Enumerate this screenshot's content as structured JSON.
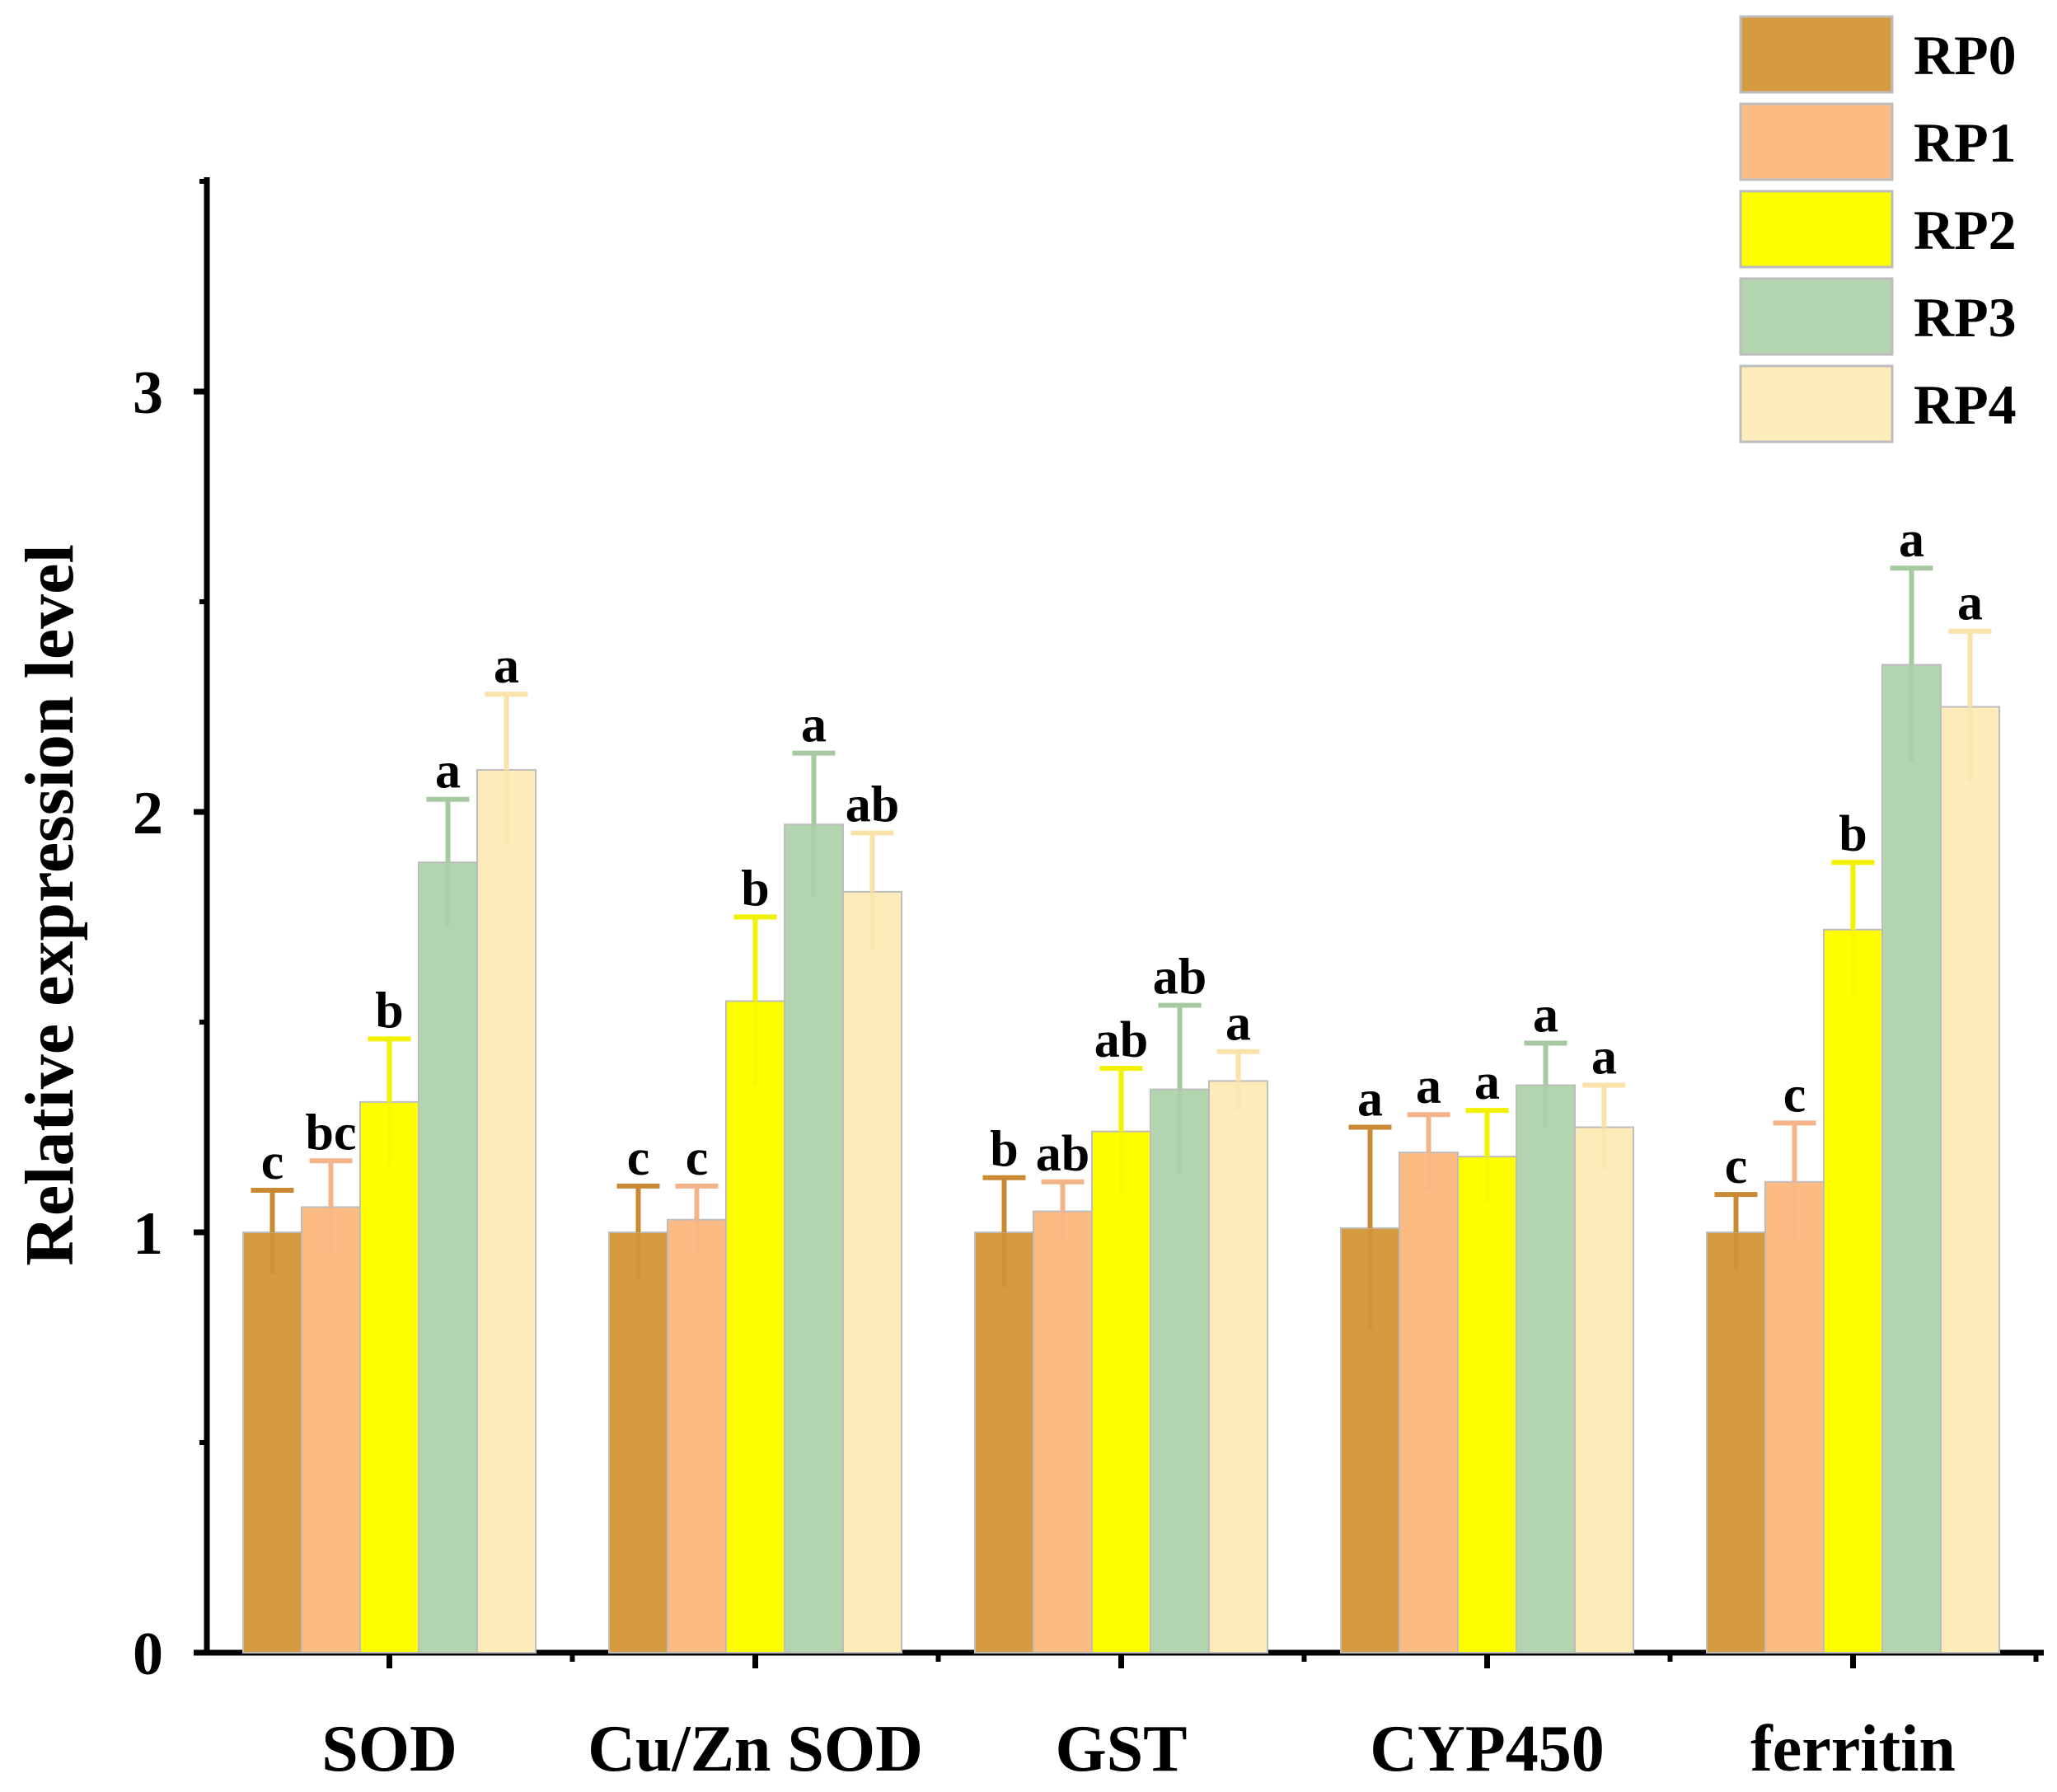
{
  "chart_data": {
    "type": "bar",
    "title": "",
    "xlabel": "",
    "ylabel": "Relative expression level",
    "ylim": [
      0,
      3.5
    ],
    "yticks": [
      0,
      1,
      2,
      3
    ],
    "ytick_labels": [
      "0",
      "1",
      "2",
      "3"
    ],
    "grid": false,
    "legend_position": "top-right",
    "categories": [
      "SOD",
      "Cu/Zn SOD",
      "GST",
      "CYP450",
      "ferritin"
    ],
    "series": [
      {
        "name": "RP0",
        "color": "#D69B40",
        "error_color": "#C98A33",
        "values": [
          1.0,
          1.0,
          1.0,
          1.01,
          1.0
        ],
        "errors": [
          0.1,
          0.11,
          0.13,
          0.24,
          0.09
        ],
        "significance": [
          "c",
          "c",
          "b",
          "a",
          "c"
        ]
      },
      {
        "name": "RP1",
        "color": "#FDBB84",
        "error_color": "#F4B48A",
        "values": [
          1.06,
          1.03,
          1.05,
          1.19,
          1.12
        ],
        "errors": [
          0.11,
          0.08,
          0.07,
          0.09,
          0.14
        ],
        "significance": [
          "bc",
          "c",
          "ab",
          "a",
          "c"
        ]
      },
      {
        "name": "RP2",
        "color": "#FFFF00",
        "error_color": "#F2F200",
        "values": [
          1.31,
          1.55,
          1.24,
          1.18,
          1.72
        ],
        "errors": [
          0.15,
          0.2,
          0.15,
          0.11,
          0.16
        ],
        "significance": [
          "b",
          "b",
          "ab",
          "a",
          "b"
        ]
      },
      {
        "name": "RP3",
        "color": "#B2D4AE",
        "error_color": "#A6C9A1",
        "values": [
          1.88,
          1.97,
          1.34,
          1.35,
          2.35
        ],
        "errors": [
          0.15,
          0.17,
          0.2,
          0.1,
          0.23
        ],
        "significance": [
          "a",
          "a",
          "ab",
          "a",
          "a"
        ]
      },
      {
        "name": "RP4",
        "color": "#FDECB9",
        "error_color": "#F9E3AA",
        "values": [
          2.1,
          1.81,
          1.36,
          1.25,
          2.25
        ],
        "errors": [
          0.18,
          0.14,
          0.07,
          0.1,
          0.18
        ],
        "significance": [
          "a",
          "ab",
          "a",
          "a",
          "a"
        ]
      }
    ]
  }
}
